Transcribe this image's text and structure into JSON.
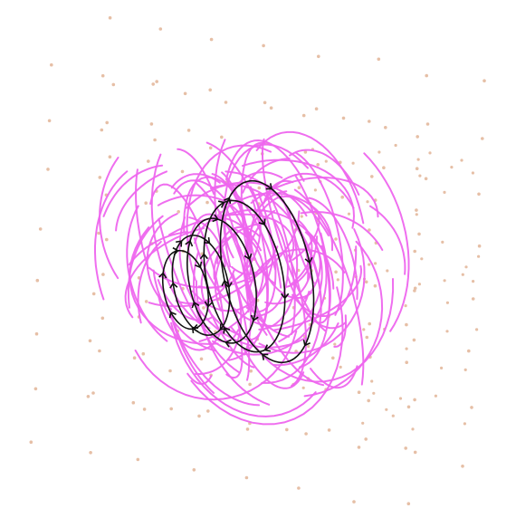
{
  "figure": {
    "title": "",
    "background": "#ffffff"
  },
  "colors": {
    "dots": "#e6bfa6",
    "stream_lines": "#ee66ee",
    "orbits": "#111111"
  },
  "scene": {
    "description_visible_text": "",
    "dot_layers": 9,
    "stream_line_count": 120,
    "orbit_count": 5
  }
}
